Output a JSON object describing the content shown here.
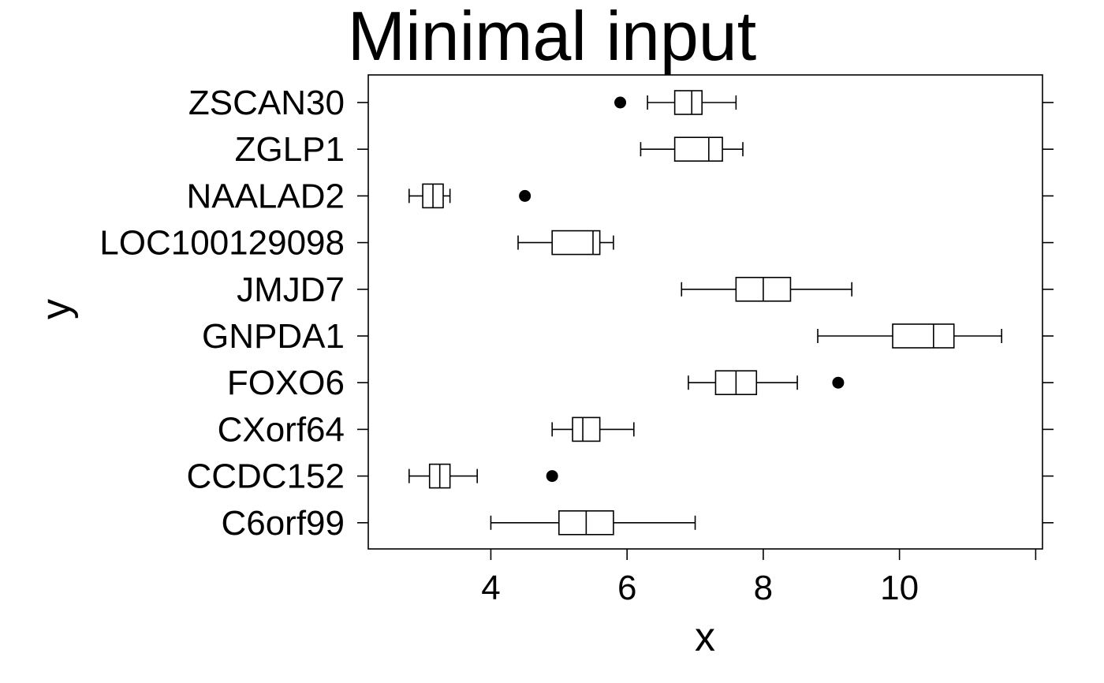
{
  "chart_data": {
    "type": "boxplot",
    "title": "Minimal input",
    "xlabel": "x",
    "ylabel": "y",
    "xlim": [
      2.2,
      12.1
    ],
    "x_ticks": [
      4,
      6,
      8,
      10
    ],
    "x_tick_labels": [
      "4",
      "6",
      "8",
      "10"
    ],
    "grid": false,
    "categories": [
      "ZSCAN30",
      "ZGLP1",
      "NAALAD2",
      "LOC100129098",
      "JMJD7",
      "GNPDA1",
      "FOXO6",
      "CXorf64",
      "CCDC152",
      "C6orf99"
    ],
    "boxes": [
      {
        "label": "ZSCAN30",
        "whisker_low": 6.3,
        "q1": 6.7,
        "median": 6.95,
        "q3": 7.1,
        "whisker_high": 7.6,
        "outliers": [
          5.9
        ]
      },
      {
        "label": "ZGLP1",
        "whisker_low": 6.2,
        "q1": 6.7,
        "median": 7.2,
        "q3": 7.4,
        "whisker_high": 7.7,
        "outliers": []
      },
      {
        "label": "NAALAD2",
        "whisker_low": 2.8,
        "q1": 3.0,
        "median": 3.15,
        "q3": 3.3,
        "whisker_high": 3.4,
        "outliers": [
          4.5
        ]
      },
      {
        "label": "LOC100129098",
        "whisker_low": 4.4,
        "q1": 4.9,
        "median": 5.5,
        "q3": 5.6,
        "whisker_high": 5.8,
        "outliers": []
      },
      {
        "label": "JMJD7",
        "whisker_low": 6.8,
        "q1": 7.6,
        "median": 8.0,
        "q3": 8.4,
        "whisker_high": 9.3,
        "outliers": []
      },
      {
        "label": "GNPDA1",
        "whisker_low": 8.8,
        "q1": 9.9,
        "median": 10.5,
        "q3": 10.8,
        "whisker_high": 11.5,
        "outliers": []
      },
      {
        "label": "FOXO6",
        "whisker_low": 6.9,
        "q1": 7.3,
        "median": 7.6,
        "q3": 7.9,
        "whisker_high": 8.5,
        "outliers": [
          9.1
        ]
      },
      {
        "label": "CXorf64",
        "whisker_low": 4.9,
        "q1": 5.2,
        "median": 5.35,
        "q3": 5.6,
        "whisker_high": 6.1,
        "outliers": []
      },
      {
        "label": "CCDC152",
        "whisker_low": 2.8,
        "q1": 3.1,
        "median": 3.25,
        "q3": 3.4,
        "whisker_high": 3.8,
        "outliers": [
          4.9
        ]
      },
      {
        "label": "C6orf99",
        "whisker_low": 4.0,
        "q1": 5.0,
        "median": 5.4,
        "q3": 5.8,
        "whisker_high": 7.0,
        "outliers": []
      }
    ],
    "colors": {
      "stroke": "#000000",
      "background": "#ffffff",
      "outlier_fill": "#000000"
    }
  }
}
